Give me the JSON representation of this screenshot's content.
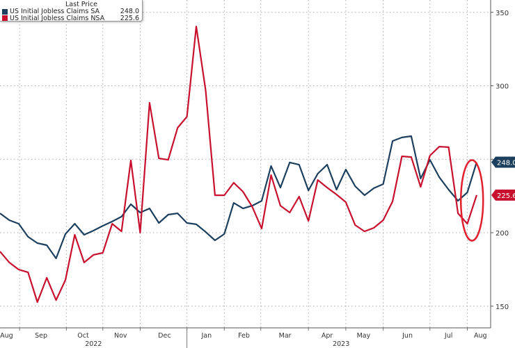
{
  "legend": {
    "title": "Last Price",
    "items": [
      {
        "name": "US Initial Jobless Claims SA",
        "value": "248.0",
        "color": "#1d3f5e"
      },
      {
        "name": "US Initial Jobless Claims NSA",
        "value": "225.6",
        "color": "#c8102e"
      }
    ]
  },
  "chart_data": {
    "type": "line",
    "title": "",
    "xlabel": "",
    "ylabel": "",
    "ylim": [
      140,
      355
    ],
    "y_ticks": [
      150,
      200,
      250,
      300,
      350
    ],
    "y_tick_labels": [
      "150",
      "200",
      "",
      "300",
      "350"
    ],
    "grid": true,
    "legend_position": "top-left",
    "x_unit": "week index (weekly data, Aug 2022 - Aug 2023)",
    "x_ticks": [
      {
        "label": "Aug",
        "at": 0.7
      },
      {
        "label": "Sep",
        "at": 4.4
      },
      {
        "label": "Oct",
        "at": 8.9
      },
      {
        "label": "Nov",
        "at": 12.9
      },
      {
        "label": "Dec",
        "at": 17.6
      },
      {
        "label": "Jan",
        "at": 22.1
      },
      {
        "label": "Feb",
        "at": 26.1
      },
      {
        "label": "Mar",
        "at": 30.5
      },
      {
        "label": "Apr",
        "at": 35
      },
      {
        "label": "May",
        "at": 38.9
      },
      {
        "label": "Jun",
        "at": 43.6
      },
      {
        "label": "Jul",
        "at": 48
      },
      {
        "label": "Aug",
        "at": 51.4
      }
    ],
    "gridlines_at": [
      2.1,
      7.1,
      11,
      15,
      20,
      24,
      27.9,
      33,
      37,
      41,
      46,
      50
    ],
    "year_labels": [
      {
        "label": "2022",
        "at": 10
      },
      {
        "label": "2023",
        "at": 36.5
      }
    ],
    "year_separator_at": 20,
    "series": [
      {
        "name": "US Initial Jobless Claims SA",
        "color": "#1d3f5e",
        "last": "248.0",
        "values": [
          213.2,
          208.5,
          206.1,
          197.2,
          192.9,
          191.5,
          182.5,
          199.1,
          206.1,
          198.6,
          201.4,
          204.7,
          207.6,
          210.9,
          219.4,
          213.7,
          216.5,
          206.6,
          212.3,
          213.2,
          206.6,
          205.7,
          200.5,
          194.8,
          199.1,
          220.3,
          216.5,
          218.4,
          221.7,
          245.4,
          230.7,
          247.8,
          246.3,
          228.8,
          240.2,
          246.3,
          229.3,
          243.0,
          231.7,
          225.5,
          230.3,
          233.1,
          262.4,
          264.8,
          265.7,
          236.9,
          249.6,
          237.8,
          229.3,
          221.7,
          227.4,
          248.0
        ]
      },
      {
        "name": "US Initial Jobless Claims NSA",
        "color": "#c8102e",
        "last": "225.6",
        "values": [
          187.2,
          179.7,
          174.9,
          173.0,
          152.7,
          169.3,
          154.1,
          167.8,
          198.6,
          179.7,
          184.9,
          186.3,
          206.1,
          200.9,
          249.2,
          200.0,
          288.4,
          250.6,
          249.6,
          271.4,
          279.0,
          340.4,
          296.9,
          225.5,
          225.5,
          234.0,
          227.9,
          217.5,
          202.8,
          239.2,
          218.4,
          213.7,
          224.6,
          208.0,
          235.9,
          230.7,
          226.0,
          220.8,
          205.2,
          200.9,
          203.3,
          208.5,
          221.3,
          252.0,
          251.5,
          231.2,
          252.5,
          258.6,
          258.2,
          213.2,
          206.1,
          225.6
        ]
      }
    ],
    "annotations": [
      {
        "type": "ellipse",
        "around": "last two weeks",
        "color": "#e0202e"
      }
    ]
  }
}
